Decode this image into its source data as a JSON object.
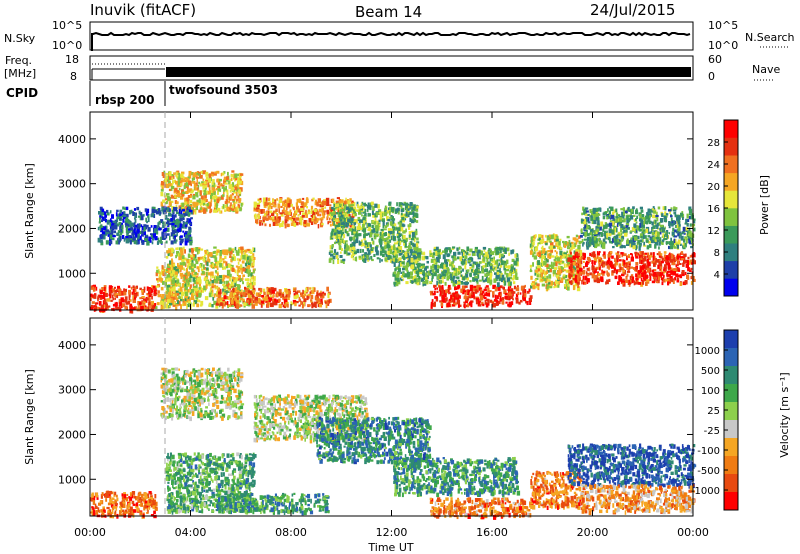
{
  "header": {
    "station": "Inuvik (fitACF)",
    "beam": "Beam 14",
    "date": "24/Jul/2015"
  },
  "strips": {
    "sky_label": "N.Sky",
    "sky_ticks": [
      "10^5",
      "10^0"
    ],
    "search_label": "N.Search",
    "search_ticks": [
      "10^5",
      "10^0"
    ],
    "freq_label_line1": "Freq.",
    "freq_label_line2": "[MHz]",
    "freq_ticks": [
      "18",
      "8"
    ],
    "nave_label": "Nave",
    "nave_ticks": [
      "60",
      "0"
    ],
    "cpid_label": "CPID",
    "cpid_segments": [
      {
        "name": "rbsp 200",
        "start_h": 0.0,
        "end_h": 2.95
      },
      {
        "name": "twofsound 3503",
        "start_h": 2.95,
        "end_h": 24.0
      }
    ]
  },
  "colors": {
    "power_scale": [
      "#0000ee",
      "#1e3fa8",
      "#2f7f7f",
      "#3b9a5a",
      "#7fc33f",
      "#e6e63a",
      "#f5a623",
      "#f07020",
      "#e53010",
      "#ff0000"
    ],
    "velocity_scale": [
      "#1d3fae",
      "#2b64b4",
      "#2e8a72",
      "#3ea84a",
      "#8dd04c",
      "#c8c8c8",
      "#f5a623",
      "#f07c12",
      "#e84a10",
      "#ff0000"
    ]
  },
  "chart_data": [
    {
      "type": "heatmap",
      "panel": "power",
      "xlabel": "Time UT",
      "ylabel": "Slant Range [km]",
      "x_ticks": [
        "00:00",
        "04:00",
        "08:00",
        "12:00",
        "16:00",
        "20:00",
        "00:00"
      ],
      "xlim_hours": [
        0,
        24
      ],
      "ylim": [
        180,
        4600
      ],
      "y_ticks": [
        1000,
        2000,
        3000,
        4000
      ],
      "colorbar_label": "Power [dB]",
      "colorbar_ticks": [
        "4",
        "8",
        "12",
        "16",
        "20",
        "24",
        "28"
      ],
      "scatter_regions": [
        {
          "t0": 0.0,
          "t1": 2.6,
          "r0": 200,
          "r1": 750,
          "level": 0.85
        },
        {
          "t0": 2.6,
          "t1": 3.4,
          "r0": 250,
          "r1": 1200,
          "level": 0.6
        },
        {
          "t0": 2.8,
          "t1": 6.0,
          "r0": 2400,
          "r1": 3300,
          "level": 0.6
        },
        {
          "t0": 3.0,
          "t1": 6.5,
          "r0": 300,
          "r1": 1600,
          "level": 0.55
        },
        {
          "t0": 5.0,
          "t1": 9.5,
          "r0": 300,
          "r1": 700,
          "level": 0.75
        },
        {
          "t0": 6.5,
          "t1": 10.5,
          "r0": 2100,
          "r1": 2700,
          "level": 0.7
        },
        {
          "t0": 9.5,
          "t1": 13.0,
          "r0": 1300,
          "r1": 2600,
          "level": 0.4
        },
        {
          "t0": 13.5,
          "t1": 17.5,
          "r0": 300,
          "r1": 750,
          "level": 0.9
        },
        {
          "t0": 12.0,
          "t1": 17.0,
          "r0": 800,
          "r1": 1600,
          "level": 0.4
        },
        {
          "t0": 17.5,
          "t1": 19.5,
          "r0": 700,
          "r1": 1900,
          "level": 0.55
        },
        {
          "t0": 19.0,
          "t1": 24.0,
          "r0": 800,
          "r1": 1500,
          "level": 0.85
        },
        {
          "t0": 19.5,
          "t1": 24.0,
          "r0": 1600,
          "r1": 2500,
          "level": 0.35
        },
        {
          "t0": 0.3,
          "t1": 4.0,
          "r0": 1700,
          "r1": 2500,
          "level": 0.2
        }
      ]
    },
    {
      "type": "heatmap",
      "panel": "velocity",
      "xlabel": "Time UT",
      "ylabel": "Slant Range [km]",
      "x_ticks": [
        "00:00",
        "04:00",
        "08:00",
        "12:00",
        "16:00",
        "20:00",
        "00:00"
      ],
      "xlim_hours": [
        0,
        24
      ],
      "ylim": [
        180,
        4600
      ],
      "y_ticks": [
        1000,
        2000,
        3000,
        4000
      ],
      "colorbar_label": "Velocity [m s⁻¹]",
      "colorbar_ticks": [
        "1000",
        "500",
        "100",
        "25",
        "-25",
        "-100",
        "-500",
        "-1000"
      ],
      "scatter_regions": [
        {
          "t0": 0.0,
          "t1": 2.6,
          "r0": 200,
          "r1": 750,
          "level": 0.8
        },
        {
          "t0": 2.8,
          "t1": 6.0,
          "r0": 2400,
          "r1": 3500,
          "level": 0.5
        },
        {
          "t0": 3.0,
          "t1": 6.5,
          "r0": 300,
          "r1": 1600,
          "level": 0.35
        },
        {
          "t0": 6.5,
          "t1": 11.0,
          "r0": 1900,
          "r1": 2900,
          "level": 0.5
        },
        {
          "t0": 5.0,
          "t1": 9.5,
          "r0": 300,
          "r1": 700,
          "level": 0.3
        },
        {
          "t0": 13.5,
          "t1": 17.5,
          "r0": 200,
          "r1": 600,
          "level": 0.75
        },
        {
          "t0": 12.0,
          "t1": 17.0,
          "r0": 700,
          "r1": 1500,
          "level": 0.3
        },
        {
          "t0": 17.5,
          "t1": 19.5,
          "r0": 400,
          "r1": 1200,
          "level": 0.75
        },
        {
          "t0": 19.0,
          "t1": 24.0,
          "r0": 900,
          "r1": 1800,
          "level": 0.1
        },
        {
          "t0": 19.5,
          "t1": 24.0,
          "r0": 300,
          "r1": 900,
          "level": 0.7
        },
        {
          "t0": 9.0,
          "t1": 13.5,
          "r0": 1400,
          "r1": 2400,
          "level": 0.25
        }
      ]
    }
  ]
}
